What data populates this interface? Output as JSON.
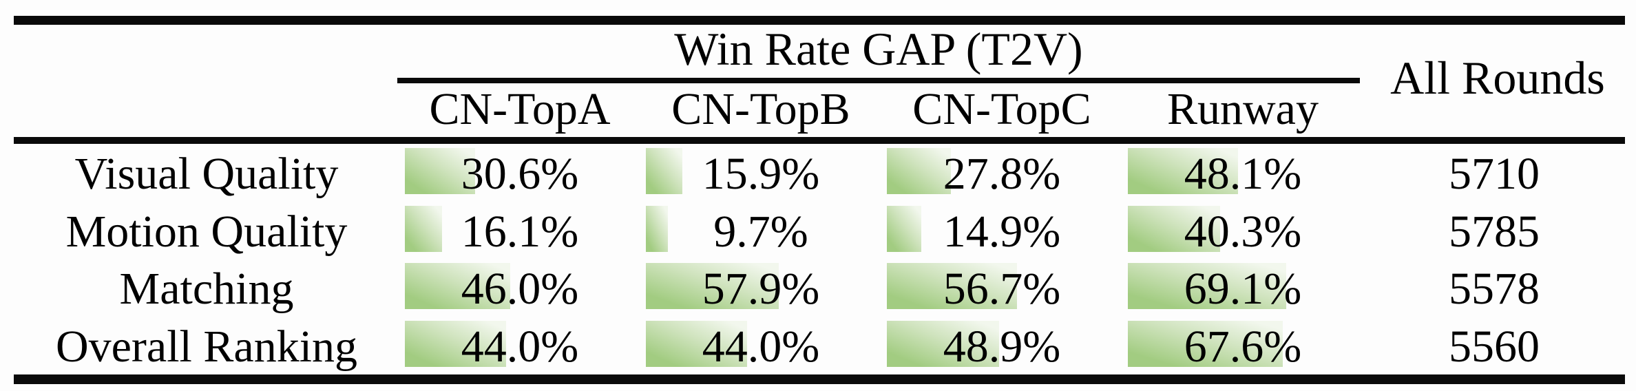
{
  "table": {
    "title": "Win Rate GAP (T2V)",
    "all_rounds_label": "All Rounds",
    "columns": [
      "CN-TopA",
      "CN-TopB",
      "CN-TopC",
      "Runway"
    ],
    "rows": [
      {
        "label": "Visual Quality",
        "cells": [
          {
            "value": 30.6,
            "display": "30.6%"
          },
          {
            "value": 15.9,
            "display": "15.9%"
          },
          {
            "value": 27.8,
            "display": "27.8%"
          },
          {
            "value": 48.1,
            "display": "48.1%"
          }
        ],
        "all_rounds": "5710"
      },
      {
        "label": "Motion Quality",
        "cells": [
          {
            "value": 16.1,
            "display": "16.1%"
          },
          {
            "value": 9.7,
            "display": "9.7%"
          },
          {
            "value": 14.9,
            "display": "14.9%"
          },
          {
            "value": 40.3,
            "display": "40.3%"
          }
        ],
        "all_rounds": "5785"
      },
      {
        "label": "Matching",
        "cells": [
          {
            "value": 46.0,
            "display": "46.0%"
          },
          {
            "value": 57.9,
            "display": "57.9%"
          },
          {
            "value": 56.7,
            "display": "56.7%"
          },
          {
            "value": 69.1,
            "display": "69.1%"
          }
        ],
        "all_rounds": "5578"
      },
      {
        "label": "Overall Ranking",
        "cells": [
          {
            "value": 44.0,
            "display": "44.0%"
          },
          {
            "value": 44.0,
            "display": "44.0%"
          },
          {
            "value": 48.9,
            "display": "48.9%"
          },
          {
            "value": 67.6,
            "display": "67.6%"
          }
        ],
        "all_rounds": "5560"
      }
    ]
  },
  "colors": {
    "bar_green": "#a2cc81",
    "bar_fade": "#f2f7ed",
    "rule_black": "#0a0a0a",
    "text_black": "#000000"
  }
}
